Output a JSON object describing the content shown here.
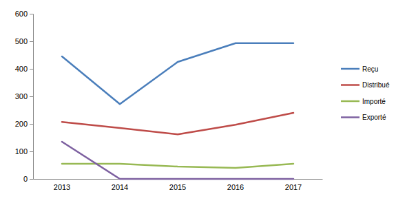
{
  "chart_data": {
    "type": "line",
    "categories": [
      "2013",
      "2014",
      "2015",
      "2016",
      "2017"
    ],
    "series": [
      {
        "name": "Reçu",
        "color": "#4a7ebb",
        "values": [
          445,
          272,
          425,
          493,
          493
        ]
      },
      {
        "name": "Distribué",
        "color": "#be4b48",
        "values": [
          207,
          185,
          162,
          197,
          240
        ]
      },
      {
        "name": "Importé",
        "color": "#98b954",
        "values": [
          55,
          55,
          45,
          40,
          55
        ]
      },
      {
        "name": "Exporté",
        "color": "#7d60a0",
        "values": [
          135,
          0,
          0,
          0,
          0
        ]
      }
    ],
    "ylim": [
      0,
      600
    ],
    "yticks": [
      0,
      100,
      200,
      300,
      400,
      500,
      600
    ],
    "grid": false,
    "legend": "right"
  }
}
